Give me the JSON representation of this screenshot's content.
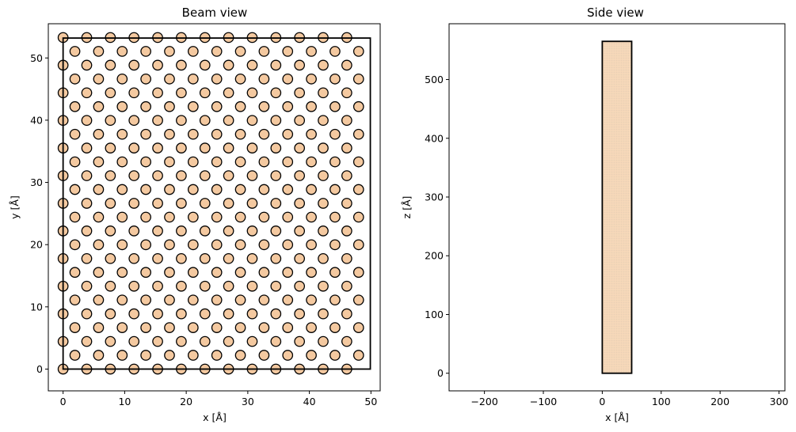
{
  "chart_data": [
    {
      "type": "scatter",
      "title": "Beam view",
      "xlabel": "x [Å]",
      "ylabel": "y [Å]",
      "xlim": [
        -2.4,
        51.5
      ],
      "ylim": [
        -3.5,
        55.5
      ],
      "xticks": [
        0,
        10,
        20,
        30,
        40,
        50
      ],
      "yticks": [
        0,
        10,
        20,
        30,
        40,
        50
      ],
      "grid": false,
      "cell": {
        "x": [
          0,
          49.9
        ],
        "y": [
          0,
          53.2
        ]
      },
      "lattice": {
        "description": "hexagonal close-packed columns",
        "a": 3.84,
        "rows": 24,
        "row_spacing": 2.22,
        "x_start": 0,
        "x_end": 49.9
      },
      "marker_color": "#f4c9a0",
      "marker_edge_color": "#000000"
    },
    {
      "type": "area",
      "title": "Side view",
      "xlabel": "x [Å]",
      "ylabel": "z [Å]",
      "xlim": [
        -260,
        310
      ],
      "ylim": [
        -30,
        595
      ],
      "xticks": [
        -200,
        -100,
        0,
        100,
        200,
        300
      ],
      "yticks": [
        0,
        100,
        200,
        300,
        400,
        500
      ],
      "grid": false,
      "cell": {
        "x": [
          0,
          49.9
        ],
        "z": [
          0,
          565
        ]
      },
      "fill_color": "#f4c9a0"
    }
  ]
}
